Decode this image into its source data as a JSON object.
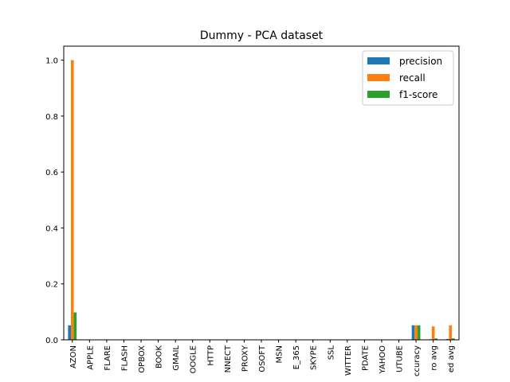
{
  "chart_data": {
    "type": "bar",
    "title": "Dummy - PCA dataset",
    "xlabel": "",
    "ylabel": "",
    "ylim": [
      0,
      1.05
    ],
    "yticks": [
      "0.0",
      "0.2",
      "0.4",
      "0.6",
      "0.8",
      "1.0"
    ],
    "ytick_values": [
      0,
      0.2,
      0.4,
      0.6,
      0.8,
      1.0
    ],
    "categories": [
      "AZON",
      "APPLE",
      "FLARE",
      "FLASH",
      "OPBOX",
      "BOOK",
      "GMAIL",
      "OOGLE",
      "HTTP",
      "NNECT",
      "PROXY",
      "OSOFT",
      "MSN",
      "E_365",
      "SKYPE",
      "SSL",
      "WITTER",
      "PDATE",
      "YAHOO",
      "UTUBE",
      "ccuracy",
      "ro avg",
      "ed avg"
    ],
    "series": [
      {
        "name": "precision",
        "color": "#1f77b4",
        "values": [
          0.052,
          0,
          0,
          0,
          0,
          0,
          0,
          0,
          0,
          0,
          0,
          0,
          0,
          0,
          0,
          0,
          0,
          0,
          0,
          0,
          0.052,
          0.002,
          0.003
        ]
      },
      {
        "name": "recall",
        "color": "#ff7f0e",
        "values": [
          1.0,
          0,
          0,
          0,
          0,
          0,
          0,
          0,
          0,
          0,
          0,
          0,
          0,
          0,
          0,
          0,
          0,
          0,
          0,
          0,
          0.052,
          0.048,
          0.052
        ]
      },
      {
        "name": "f1-score",
        "color": "#2ca02c",
        "values": [
          0.098,
          0,
          0,
          0,
          0,
          0,
          0,
          0,
          0,
          0,
          0,
          0,
          0,
          0,
          0,
          0,
          0,
          0,
          0,
          0,
          0.052,
          0.005,
          0.005
        ]
      }
    ],
    "legend": {
      "placement": "top-right"
    },
    "grid": false
  }
}
